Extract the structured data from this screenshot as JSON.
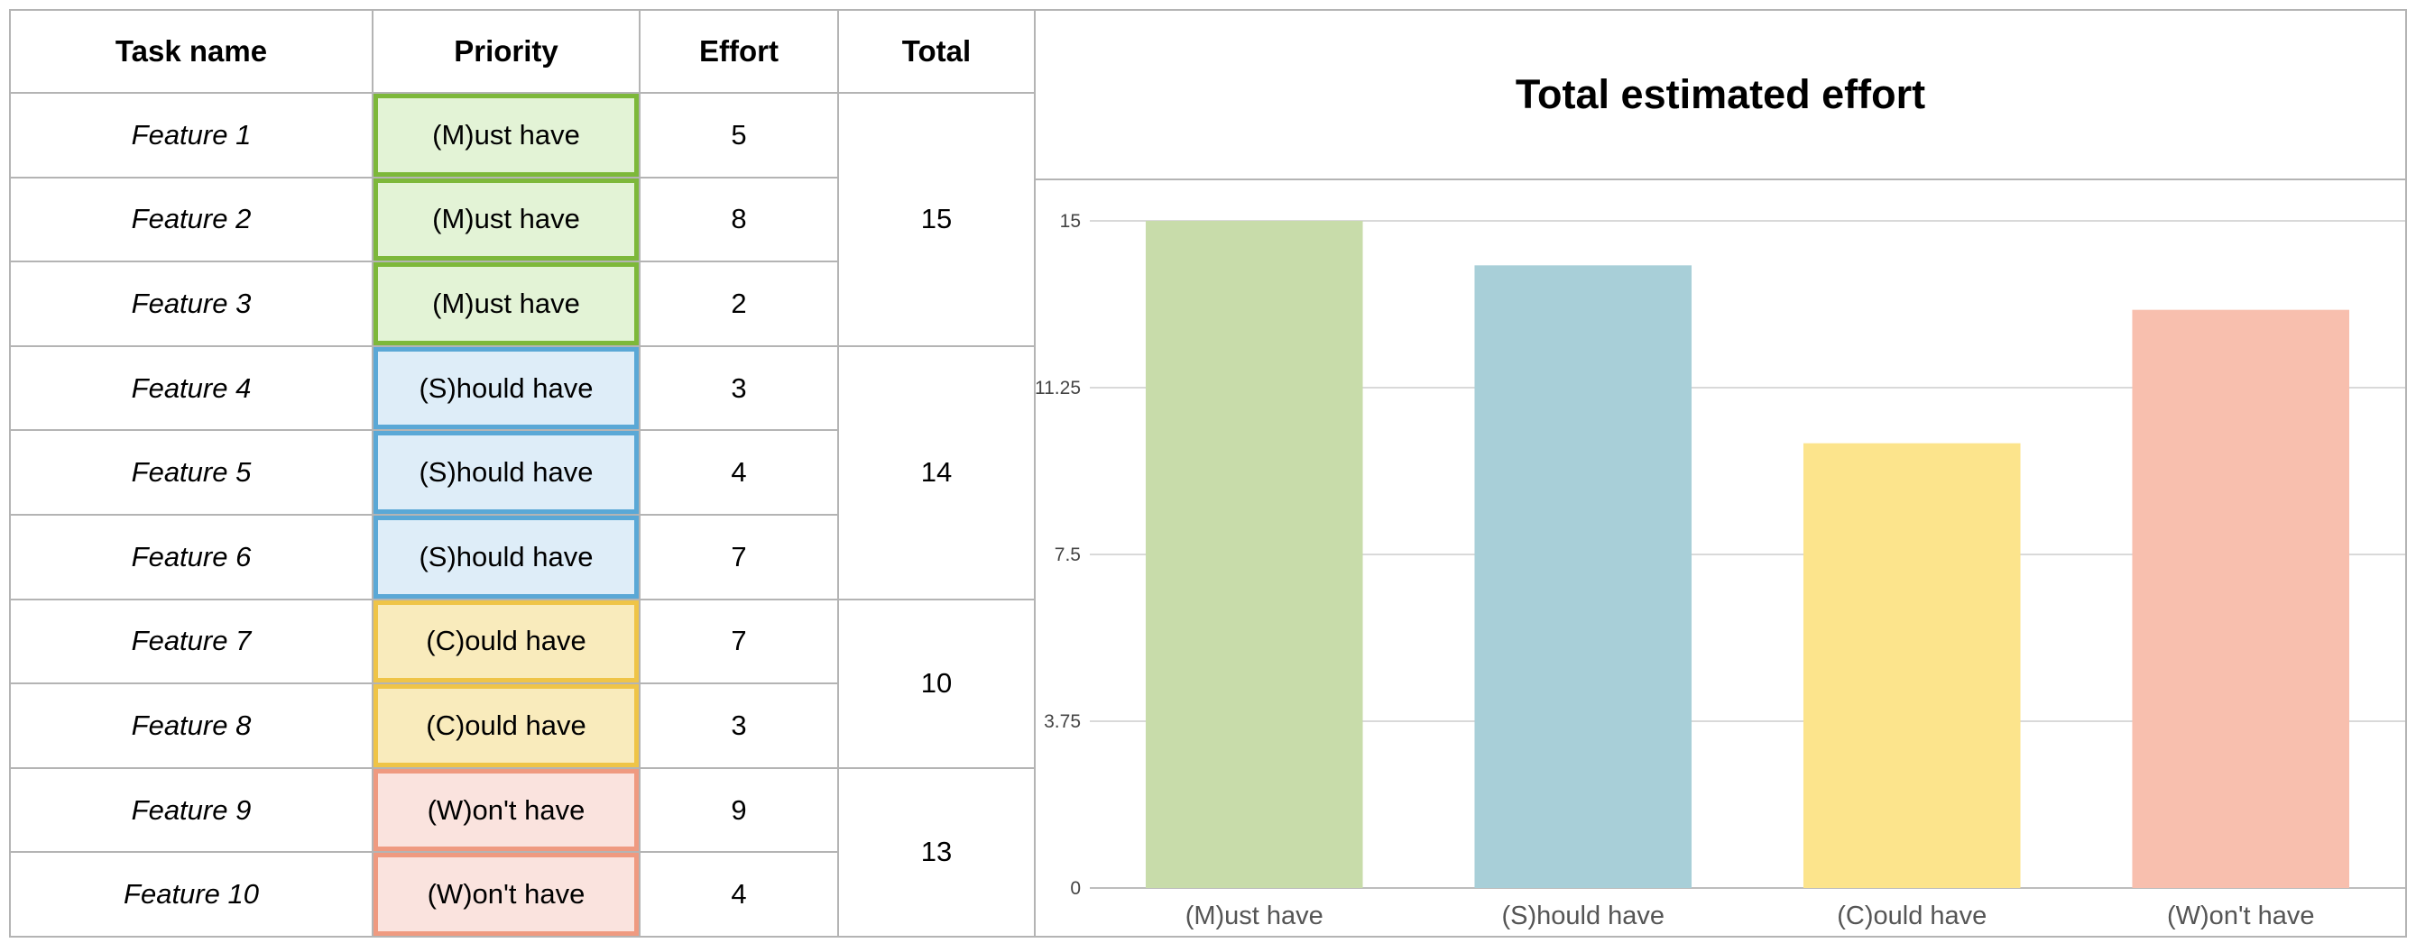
{
  "table": {
    "headers": {
      "task": "Task name",
      "priority": "Priority",
      "effort": "Effort",
      "total": "Total"
    },
    "rows": [
      {
        "task": "Feature 1",
        "priority": "(M)ust have",
        "effort": "5"
      },
      {
        "task": "Feature 2",
        "priority": "(M)ust have",
        "effort": "8"
      },
      {
        "task": "Feature 3",
        "priority": "(M)ust have",
        "effort": "2"
      },
      {
        "task": "Feature 4",
        "priority": "(S)hould have",
        "effort": "3"
      },
      {
        "task": "Feature 5",
        "priority": "(S)hould have",
        "effort": "4"
      },
      {
        "task": "Feature 6",
        "priority": "(S)hould have",
        "effort": "7"
      },
      {
        "task": "Feature 7",
        "priority": "(C)ould have",
        "effort": "7"
      },
      {
        "task": "Feature 8",
        "priority": "(C)ould have",
        "effort": "3"
      },
      {
        "task": "Feature 9",
        "priority": "(W)on't have",
        "effort": "9"
      },
      {
        "task": "Feature 10",
        "priority": "(W)on't have",
        "effort": "4"
      }
    ],
    "totals": [
      "15",
      "14",
      "10",
      "13"
    ]
  },
  "chart_data": {
    "type": "bar",
    "title": "Total estimated effort",
    "categories": [
      "(M)ust have",
      "(S)hould have",
      "(C)ould have",
      "(W)on't have"
    ],
    "values": [
      15,
      14,
      10,
      13
    ],
    "colors": [
      "#c8dcaa",
      "#a8cfd8",
      "#fce48c",
      "#f8bfae"
    ],
    "ylim": [
      0,
      15
    ],
    "yticks": [
      "0",
      "3.75",
      "7.5",
      "11.25",
      "15"
    ],
    "grid": true,
    "xlabel": "",
    "ylabel": ""
  }
}
